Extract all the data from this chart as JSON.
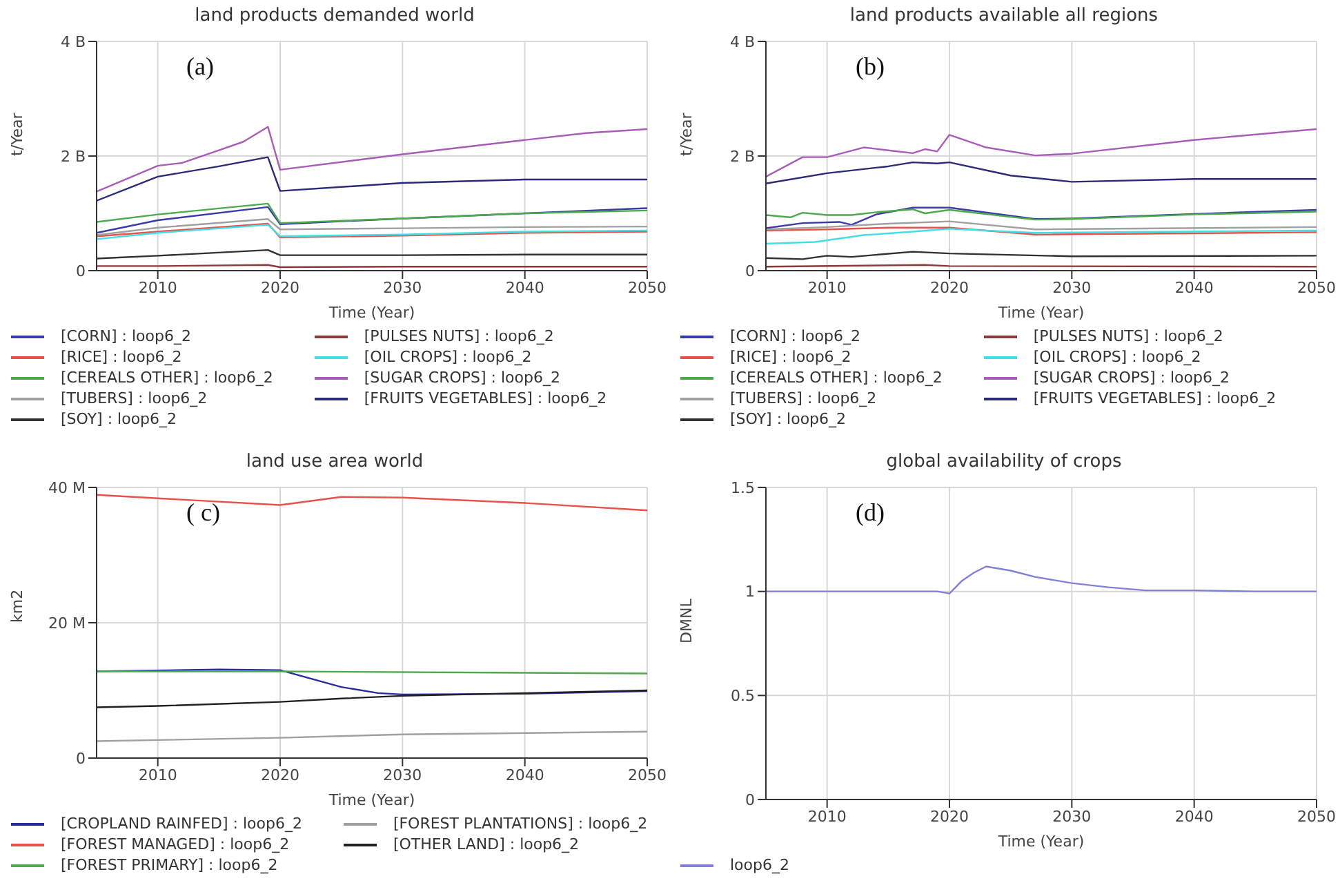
{
  "chart_data": [
    {
      "type": "line",
      "title": "land products demanded world",
      "xlabel": "Time (Year)",
      "ylabel": "t/Year",
      "annotations": [
        "(a)"
      ],
      "xlim": [
        2005,
        2050
      ],
      "xticks": [
        2010,
        2020,
        2030,
        2040,
        2050
      ],
      "ylim": [
        0,
        4000000000
      ],
      "yticks": [
        {
          "value": 0,
          "label": "0"
        },
        {
          "value": 2000000000,
          "label": "2 B"
        },
        {
          "value": 4000000000,
          "label": "4 B"
        }
      ],
      "grid": true,
      "legend": "bottom",
      "series": [
        {
          "name": "[CORN] : loop6_2",
          "color": "#3a3aa8",
          "x": [
            2005,
            2010,
            2019,
            2020,
            2030,
            2040,
            2050
          ],
          "values": [
            660000000,
            880000000,
            1110000000,
            810000000,
            910000000,
            1000000000,
            1090000000
          ]
        },
        {
          "name": "[RICE] : loop6_2",
          "color": "#e8504a",
          "x": [
            2005,
            2010,
            2019,
            2020,
            2030,
            2040,
            2050
          ],
          "values": [
            600000000,
            680000000,
            820000000,
            580000000,
            610000000,
            660000000,
            680000000
          ]
        },
        {
          "name": "[CEREALS OTHER] : loop6_2",
          "color": "#4caa4c",
          "x": [
            2005,
            2010,
            2019,
            2020,
            2030,
            2040,
            2050
          ],
          "values": [
            850000000,
            980000000,
            1170000000,
            830000000,
            910000000,
            1000000000,
            1050000000
          ]
        },
        {
          "name": "[TUBERS] : loop6_2",
          "color": "#a0a0a0",
          "x": [
            2005,
            2010,
            2019,
            2020,
            2030,
            2040,
            2050
          ],
          "values": [
            620000000,
            750000000,
            900000000,
            720000000,
            740000000,
            760000000,
            770000000
          ]
        },
        {
          "name": "[SOY] : loop6_2",
          "color": "#303030",
          "x": [
            2005,
            2010,
            2019,
            2020,
            2030,
            2040,
            2050
          ],
          "values": [
            210000000,
            260000000,
            360000000,
            270000000,
            270000000,
            280000000,
            280000000
          ]
        },
        {
          "name": "[PULSES NUTS] : loop6_2",
          "color": "#8b3a3a",
          "x": [
            2005,
            2010,
            2019,
            2020,
            2030,
            2040,
            2050
          ],
          "values": [
            80000000,
            80000000,
            100000000,
            60000000,
            70000000,
            70000000,
            70000000
          ]
        },
        {
          "name": "[OIL CROPS] : loop6_2",
          "color": "#40e0e8",
          "x": [
            2005,
            2010,
            2019,
            2020,
            2030,
            2040,
            2050
          ],
          "values": [
            550000000,
            660000000,
            800000000,
            600000000,
            630000000,
            680000000,
            700000000
          ]
        },
        {
          "name": "[SUGAR CROPS] : loop6_2",
          "color": "#a85cb8",
          "x": [
            2005,
            2008,
            2010,
            2012,
            2015,
            2017,
            2019,
            2020,
            2030,
            2040,
            2045,
            2050
          ],
          "values": [
            1380000000,
            1650000000,
            1830000000,
            1880000000,
            2100000000,
            2250000000,
            2510000000,
            1760000000,
            2030000000,
            2280000000,
            2400000000,
            2470000000
          ]
        },
        {
          "name": "[FRUITS VEGETABLES] : loop6_2",
          "color": "#2a2a78",
          "x": [
            2005,
            2010,
            2015,
            2019,
            2020,
            2030,
            2040,
            2050
          ],
          "values": [
            1220000000,
            1640000000,
            1820000000,
            1980000000,
            1390000000,
            1530000000,
            1590000000,
            1590000000
          ]
        }
      ]
    },
    {
      "type": "line",
      "title": "land products available all regions",
      "xlabel": "Time (Year)",
      "ylabel": "t/Year",
      "annotations": [
        "(b)"
      ],
      "xlim": [
        2005,
        2050
      ],
      "xticks": [
        2010,
        2020,
        2030,
        2040,
        2050
      ],
      "ylim": [
        0,
        4000000000
      ],
      "yticks": [
        {
          "value": 0,
          "label": "0"
        },
        {
          "value": 2000000000,
          "label": "2 B"
        },
        {
          "value": 4000000000,
          "label": "4 B"
        }
      ],
      "grid": true,
      "legend": "bottom",
      "series": [
        {
          "name": "[CORN] : loop6_2",
          "color": "#3a3aa8",
          "x": [
            2005,
            2008,
            2011,
            2012,
            2014,
            2017,
            2020,
            2027,
            2030,
            2040,
            2050
          ],
          "values": [
            740000000,
            830000000,
            850000000,
            800000000,
            980000000,
            1100000000,
            1100000000,
            900000000,
            910000000,
            990000000,
            1060000000
          ]
        },
        {
          "name": "[RICE] : loop6_2",
          "color": "#e8504a",
          "x": [
            2005,
            2010,
            2015,
            2020,
            2027,
            2050
          ],
          "values": [
            700000000,
            720000000,
            750000000,
            750000000,
            630000000,
            670000000
          ]
        },
        {
          "name": "[CEREALS OTHER] : loop6_2",
          "color": "#4caa4c",
          "x": [
            2005,
            2007,
            2008,
            2010,
            2012,
            2014,
            2017,
            2018,
            2020,
            2027,
            2030,
            2040,
            2050
          ],
          "values": [
            970000000,
            930000000,
            1010000000,
            970000000,
            970000000,
            1020000000,
            1070000000,
            1000000000,
            1060000000,
            890000000,
            900000000,
            980000000,
            1030000000
          ]
        },
        {
          "name": "[TUBERS] : loop6_2",
          "color": "#a0a0a0",
          "x": [
            2005,
            2010,
            2015,
            2020,
            2027,
            2050
          ],
          "values": [
            720000000,
            760000000,
            820000000,
            860000000,
            720000000,
            760000000
          ]
        },
        {
          "name": "[SOY] : loop6_2",
          "color": "#303030",
          "x": [
            2005,
            2008,
            2010,
            2012,
            2017,
            2020,
            2030,
            2050
          ],
          "values": [
            220000000,
            200000000,
            260000000,
            240000000,
            330000000,
            300000000,
            250000000,
            260000000
          ]
        },
        {
          "name": "[PULSES NUTS] : loop6_2",
          "color": "#8b3a3a",
          "x": [
            2005,
            2018,
            2020,
            2050
          ],
          "values": [
            70000000,
            100000000,
            80000000,
            70000000
          ]
        },
        {
          "name": "[OIL CROPS] : loop6_2",
          "color": "#40e0e8",
          "x": [
            2005,
            2009,
            2013,
            2017,
            2020,
            2027,
            2050
          ],
          "values": [
            470000000,
            500000000,
            620000000,
            680000000,
            730000000,
            660000000,
            700000000
          ]
        },
        {
          "name": "[SUGAR CROPS] : loop6_2",
          "color": "#a85cb8",
          "x": [
            2005,
            2008,
            2010,
            2013,
            2015,
            2017,
            2018,
            2019,
            2020,
            2023,
            2027,
            2030,
            2040,
            2050
          ],
          "values": [
            1640000000,
            1980000000,
            1980000000,
            2150000000,
            2100000000,
            2050000000,
            2120000000,
            2080000000,
            2370000000,
            2150000000,
            2010000000,
            2040000000,
            2280000000,
            2470000000
          ]
        },
        {
          "name": "[FRUITS VEGETABLES] : loop6_2",
          "color": "#2a2a78",
          "x": [
            2005,
            2010,
            2015,
            2017,
            2019,
            2020,
            2025,
            2030,
            2040,
            2050
          ],
          "values": [
            1520000000,
            1700000000,
            1820000000,
            1890000000,
            1870000000,
            1890000000,
            1660000000,
            1550000000,
            1600000000,
            1600000000
          ]
        }
      ]
    },
    {
      "type": "line",
      "title": "land use area world",
      "xlabel": "Time (Year)",
      "ylabel": "km2",
      "annotations": [
        "( c)"
      ],
      "xlim": [
        2005,
        2050
      ],
      "xticks": [
        2010,
        2020,
        2030,
        2040,
        2050
      ],
      "ylim": [
        0,
        40000000
      ],
      "yticks": [
        {
          "value": 0,
          "label": "0"
        },
        {
          "value": 20000000,
          "label": "20 M"
        },
        {
          "value": 40000000,
          "label": "40 M"
        }
      ],
      "grid": true,
      "legend": "bottom",
      "series": [
        {
          "name": "[CROPLAND RAINFED] : loop6_2",
          "color": "#2a2aa0",
          "x": [
            2005,
            2015,
            2020,
            2025,
            2028,
            2030,
            2040,
            2050
          ],
          "values": [
            12800000,
            13100000,
            13000000,
            10500000,
            9600000,
            9400000,
            9500000,
            9900000
          ]
        },
        {
          "name": "[FOREST MANAGED] : loop6_2",
          "color": "#e8504a",
          "x": [
            2005,
            2010,
            2020,
            2025,
            2030,
            2040,
            2050
          ],
          "values": [
            38900000,
            38400000,
            37400000,
            38600000,
            38500000,
            37700000,
            36600000
          ]
        },
        {
          "name": "[FOREST PRIMARY] : loop6_2",
          "color": "#4caa4c",
          "x": [
            2005,
            2020,
            2050
          ],
          "values": [
            12800000,
            12800000,
            12500000
          ]
        },
        {
          "name": "[FOREST PLANTATIONS] : loop6_2",
          "color": "#a0a0a0",
          "x": [
            2005,
            2020,
            2030,
            2050
          ],
          "values": [
            2500000,
            3000000,
            3500000,
            3900000
          ]
        },
        {
          "name": "[OTHER LAND] : loop6_2",
          "color": "#202020",
          "x": [
            2005,
            2010,
            2020,
            2025,
            2030,
            2040,
            2050
          ],
          "values": [
            7500000,
            7700000,
            8300000,
            8800000,
            9200000,
            9600000,
            10000000
          ]
        }
      ]
    },
    {
      "type": "line",
      "title": "global availability of crops",
      "xlabel": "Time (Year)",
      "ylabel": "DMNL",
      "annotations": [
        "(d)"
      ],
      "xlim": [
        2005,
        2050
      ],
      "xticks": [
        2010,
        2020,
        2030,
        2040,
        2050
      ],
      "ylim": [
        0,
        1.5
      ],
      "yticks": [
        0,
        0.5,
        1,
        1.5
      ],
      "grid": true,
      "legend": "bottom",
      "series": [
        {
          "name": "loop6_2",
          "color": "#8080d8",
          "x": [
            2005,
            2019,
            2020,
            2021,
            2022,
            2023,
            2025,
            2027,
            2030,
            2033,
            2036,
            2040,
            2045,
            2050
          ],
          "values": [
            1,
            1,
            0.99,
            1.05,
            1.09,
            1.12,
            1.1,
            1.07,
            1.04,
            1.02,
            1.005,
            1.005,
            1,
            1
          ]
        }
      ]
    }
  ]
}
